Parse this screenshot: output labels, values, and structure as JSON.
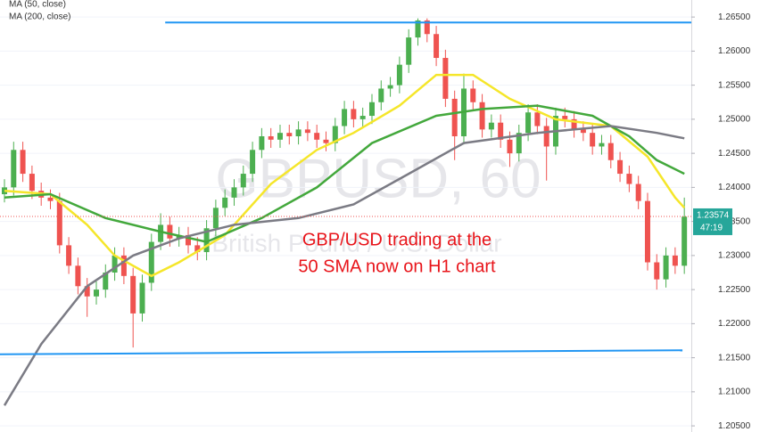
{
  "chart_data": {
    "type": "candlestick",
    "watermark": "GBPUSD, 60",
    "subtitle": "British Pound / U.S. Dollar",
    "annotation": [
      "GBP/USD trading at the",
      "50 SMA now on H1 chart"
    ],
    "up_color": "#4caf50",
    "down_color": "#ef5350",
    "candles": {
      "open": [
        1.239,
        1.24,
        1.2455,
        1.242,
        1.2395,
        1.2385,
        1.238,
        1.2315,
        1.2285,
        1.2255,
        1.224,
        1.225,
        1.2275,
        1.23,
        1.227,
        1.2215,
        1.226,
        1.232,
        1.2345,
        1.2325,
        1.233,
        1.2315,
        1.2305,
        1.234,
        1.237,
        1.2385,
        1.24,
        1.242,
        1.2455,
        1.2475,
        1.247,
        1.248,
        1.2475,
        1.2485,
        1.248,
        1.247,
        1.2465,
        1.249,
        1.2515,
        1.25,
        1.2505,
        1.2525,
        1.2545,
        1.255,
        1.258,
        1.262,
        1.2645,
        1.2625,
        1.259,
        1.253,
        1.2475,
        1.2545,
        1.2525,
        1.2485,
        1.2495,
        1.247,
        1.245,
        1.248,
        1.251,
        1.249,
        1.246,
        1.2505,
        1.25,
        1.2485,
        1.248,
        1.246,
        1.2465,
        1.244,
        1.242,
        1.2405,
        1.238,
        1.229,
        1.2265,
        1.23,
        1.2285
      ],
      "high": [
        1.2412,
        1.2467,
        1.2467,
        1.2432,
        1.2407,
        1.2397,
        1.2392,
        1.2327,
        1.2297,
        1.2267,
        1.2262,
        1.2287,
        1.2312,
        1.2312,
        1.2282,
        1.2272,
        1.2332,
        1.2362,
        1.2357,
        1.2342,
        1.2342,
        1.2327,
        1.2352,
        1.2382,
        1.2397,
        1.2412,
        1.2432,
        1.2467,
        1.2487,
        1.2487,
        1.2492,
        1.2492,
        1.2497,
        1.2497,
        1.2492,
        1.2482,
        1.2502,
        1.2527,
        1.2527,
        1.2517,
        1.2537,
        1.2557,
        1.2562,
        1.2592,
        1.2632,
        1.2648,
        1.2648,
        1.2637,
        1.2602,
        1.2542,
        1.2567,
        1.2557,
        1.2537,
        1.2507,
        1.2507,
        1.2482,
        1.2492,
        1.2522,
        1.2522,
        1.2502,
        1.2517,
        1.2517,
        1.2512,
        1.2497,
        1.2492,
        1.2477,
        1.2477,
        1.2452,
        1.2432,
        1.2417,
        1.2392,
        1.2302,
        1.2312,
        1.2312,
        1.2385
      ],
      "low": [
        1.2378,
        1.2388,
        1.2408,
        1.2383,
        1.2373,
        1.2368,
        1.2303,
        1.2273,
        1.2243,
        1.221,
        1.2228,
        1.2238,
        1.2263,
        1.2258,
        1.2165,
        1.2203,
        1.2248,
        1.2308,
        1.2313,
        1.2313,
        1.2303,
        1.2293,
        1.2293,
        1.2328,
        1.2358,
        1.2373,
        1.2388,
        1.2408,
        1.2443,
        1.2458,
        1.2458,
        1.2463,
        1.2463,
        1.2468,
        1.2458,
        1.2453,
        1.2453,
        1.2478,
        1.2488,
        1.2488,
        1.2493,
        1.2513,
        1.2533,
        1.2538,
        1.2568,
        1.2608,
        1.2613,
        1.2578,
        1.2518,
        1.244,
        1.2463,
        1.2513,
        1.2473,
        1.2473,
        1.2458,
        1.243,
        1.2438,
        1.2468,
        1.2478,
        1.241,
        1.2448,
        1.2488,
        1.2473,
        1.2468,
        1.2448,
        1.2448,
        1.2428,
        1.2408,
        1.2393,
        1.2368,
        1.2278,
        1.225,
        1.2253,
        1.2273,
        1.2273
      ],
      "close": [
        1.24,
        1.2455,
        1.242,
        1.2395,
        1.2385,
        1.238,
        1.2315,
        1.2285,
        1.2255,
        1.224,
        1.225,
        1.2275,
        1.23,
        1.227,
        1.2215,
        1.226,
        1.232,
        1.2345,
        1.2325,
        1.233,
        1.2315,
        1.2305,
        1.234,
        1.237,
        1.2385,
        1.24,
        1.242,
        1.2455,
        1.2475,
        1.247,
        1.248,
        1.2475,
        1.2485,
        1.248,
        1.247,
        1.2465,
        1.249,
        1.2515,
        1.25,
        1.2505,
        1.2525,
        1.2545,
        1.255,
        1.258,
        1.262,
        1.2645,
        1.2625,
        1.259,
        1.253,
        1.2475,
        1.2545,
        1.2525,
        1.2485,
        1.2495,
        1.247,
        1.245,
        1.248,
        1.251,
        1.249,
        1.246,
        1.2505,
        1.25,
        1.2485,
        1.248,
        1.246,
        1.2465,
        1.244,
        1.242,
        1.2405,
        1.238,
        1.229,
        1.2265,
        1.23,
        1.2285,
        1.2357
      ]
    },
    "series": [
      {
        "name": "MA (50, close)",
        "color": "#f5e62a",
        "x": [
          0,
          5,
          9,
          12,
          16,
          19,
          24,
          29,
          34,
          38,
          43,
          47,
          51,
          55,
          60,
          66,
          70,
          73,
          74
        ],
        "values": [
          1.2395,
          1.239,
          1.2345,
          1.23,
          1.227,
          1.229,
          1.233,
          1.2405,
          1.2455,
          1.248,
          1.252,
          1.2565,
          1.2565,
          1.253,
          1.25,
          1.249,
          1.2445,
          1.2385,
          1.237
        ]
      },
      {
        "color": "#43a83c",
        "x": [
          0,
          5,
          11,
          17,
          22,
          28,
          34,
          40,
          47,
          52,
          58,
          64,
          68,
          71,
          74
        ],
        "values": [
          1.2385,
          1.239,
          1.2355,
          1.2335,
          1.232,
          1.2355,
          1.24,
          1.2465,
          1.2505,
          1.2515,
          1.252,
          1.2505,
          1.2475,
          1.244,
          1.242
        ]
      },
      {
        "name": "MA (200, close)",
        "color": "#7b7b84",
        "x": [
          0,
          4,
          9,
          14,
          19,
          25,
          32,
          38,
          44,
          50,
          58,
          66,
          71,
          74
        ],
        "values": [
          1.208,
          1.217,
          1.2255,
          1.23,
          1.2325,
          1.2345,
          1.2355,
          1.2375,
          1.242,
          1.2465,
          1.248,
          1.249,
          1.248,
          1.2472
        ]
      }
    ],
    "levels": [
      {
        "color": "#2196f3",
        "x": [
          17.5,
          74.76
        ],
        "values": [
          1.2642,
          1.2642
        ]
      },
      {
        "color": "#2196f3",
        "x": [
          -0.485,
          73.8
        ],
        "values": [
          1.2155,
          1.2161
        ]
      }
    ],
    "last_price": {
      "value": 1.23574,
      "label": "1.23574"
    },
    "countdown": "47:19",
    "last_color": "#26a69a",
    "xlim": [
      -0.485,
      74.76
    ],
    "ylim": [
      1.2041,
      1.2675
    ],
    "yticks": [
      {
        "value": 1.205,
        "label": "1.20500"
      },
      {
        "value": 1.21,
        "label": "1.21000"
      },
      {
        "value": 1.215,
        "label": "1.21500"
      },
      {
        "value": 1.22,
        "label": "1.22000"
      },
      {
        "value": 1.225,
        "label": "1.22500"
      },
      {
        "value": 1.23,
        "label": "1.23000"
      },
      {
        "value": 1.235,
        "label": "1.23500"
      },
      {
        "value": 1.24,
        "label": "1.24000"
      },
      {
        "value": 1.245,
        "label": "1.24500"
      },
      {
        "value": 1.25,
        "label": "1.25000"
      },
      {
        "value": 1.255,
        "label": "1.25500"
      },
      {
        "value": 1.26,
        "label": "1.26000"
      },
      {
        "value": 1.265,
        "label": "1.26500"
      }
    ],
    "grid": true
  }
}
